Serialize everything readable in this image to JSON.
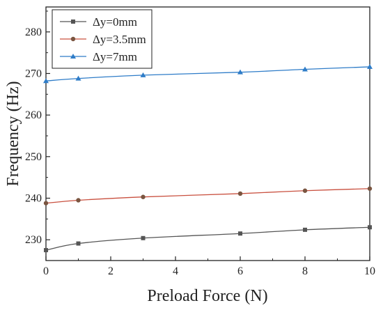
{
  "chart_data": {
    "type": "line",
    "xlabel": "Preload Force (N)",
    "ylabel": "Frequency (Hz)",
    "xlim": [
      0,
      10
    ],
    "ylim": [
      225,
      286
    ],
    "x_ticks": [
      0,
      2,
      4,
      6,
      8,
      10
    ],
    "y_ticks": [
      230,
      240,
      250,
      260,
      270,
      280
    ],
    "grid": false,
    "legend_position": "top-left",
    "series": [
      {
        "name": "Δy=0mm",
        "marker": "square",
        "color": "#555555",
        "x": [
          0,
          1,
          3,
          6,
          8,
          10
        ],
        "y": [
          227.5,
          229.1,
          230.4,
          231.5,
          232.4,
          233.0
        ]
      },
      {
        "name": "Δy=3.5mm",
        "marker": "circle",
        "color": "#c9503f",
        "marker_color": "#7a5540",
        "x": [
          0,
          1,
          3,
          6,
          8,
          10
        ],
        "y": [
          238.8,
          239.5,
          240.3,
          241.1,
          241.8,
          242.3
        ]
      },
      {
        "name": "Δy=7mm",
        "marker": "triangle",
        "color": "#2e7cc8",
        "x": [
          0,
          1,
          3,
          6,
          8,
          10
        ],
        "y": [
          268.2,
          268.8,
          269.6,
          270.3,
          271.0,
          271.6
        ]
      }
    ]
  }
}
